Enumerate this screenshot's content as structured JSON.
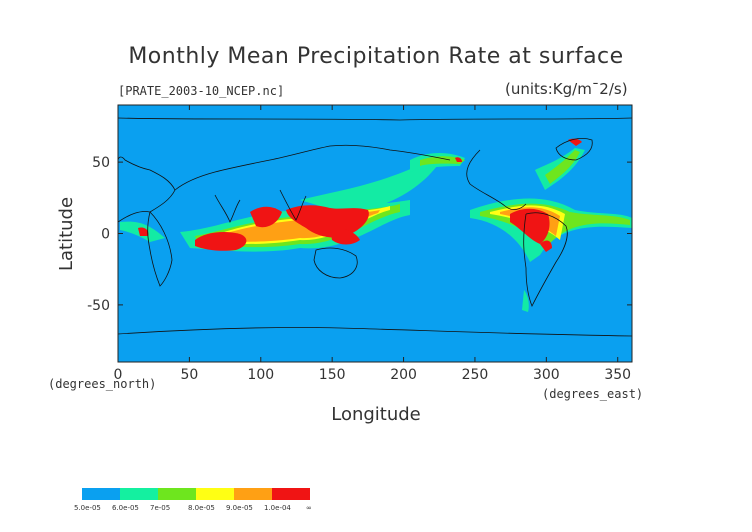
{
  "chart_data": {
    "type": "heatmap",
    "title": "Monthly Mean Precipitation Rate at surface",
    "source_label": "[PRATE_2003-10_NCEP.nc]",
    "units_label": "(units:Kg/m¯2/s)",
    "xlabel": "Longitude",
    "ylabel": "Latitude",
    "x_unit_label": "(degrees_east)",
    "y_unit_label": "(degrees_north)",
    "xlim": [
      0,
      360
    ],
    "ylim": [
      -90,
      90
    ],
    "x_ticks": [
      0,
      50,
      100,
      150,
      200,
      250,
      300,
      350
    ],
    "y_ticks": [
      -50,
      0,
      50
    ],
    "background_color": "#0aa0f0",
    "legend": {
      "bins": [
        {
          "label": "5.0e-05",
          "color": "#0aa0f0"
        },
        {
          "label": "6.0e-05",
          "color": "#14f0a0"
        },
        {
          "label": "7e-05",
          "color": "#6ee61e"
        },
        {
          "label": "8.0e-05",
          "color": "#ffff14"
        },
        {
          "label": "9.0e-05",
          "color": "#ffa014"
        },
        {
          "label": "1.0e-04",
          "color": "#f01414"
        }
      ],
      "end_label": "∞"
    }
  }
}
